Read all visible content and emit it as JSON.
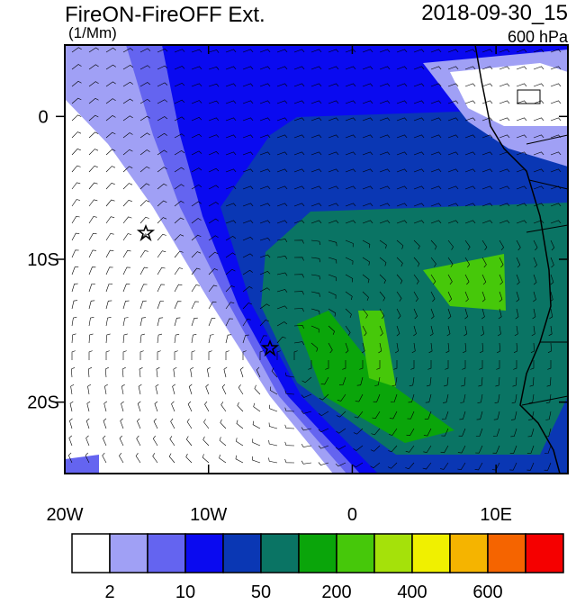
{
  "title": "FireON-FireOFF Ext.",
  "units": "(1/Mm)",
  "date": "2018-09-30_15",
  "level": "600 hPa",
  "map": {
    "xlim": [
      -20,
      15
    ],
    "ylim": [
      -25,
      5
    ],
    "xticks": [
      {
        "value": -20,
        "label": "20W"
      },
      {
        "value": -10,
        "label": "10W"
      },
      {
        "value": 0,
        "label": "0"
      },
      {
        "value": 10,
        "label": "10E"
      }
    ],
    "yticks": [
      {
        "value": 0,
        "label": "0"
      },
      {
        "value": -10,
        "label": "10S"
      },
      {
        "value": -20,
        "label": "20S"
      }
    ]
  },
  "colorbar": {
    "colors": [
      "#ffffff",
      "#a0a0f5",
      "#6464f0",
      "#0a0af0",
      "#0a37b4",
      "#0a7464",
      "#0aa50a",
      "#46c80a",
      "#a5e10a",
      "#f0f000",
      "#f5b400",
      "#f56400",
      "#f50000"
    ],
    "labels": [
      "2",
      "10",
      "50",
      "200",
      "400",
      "600"
    ]
  }
}
